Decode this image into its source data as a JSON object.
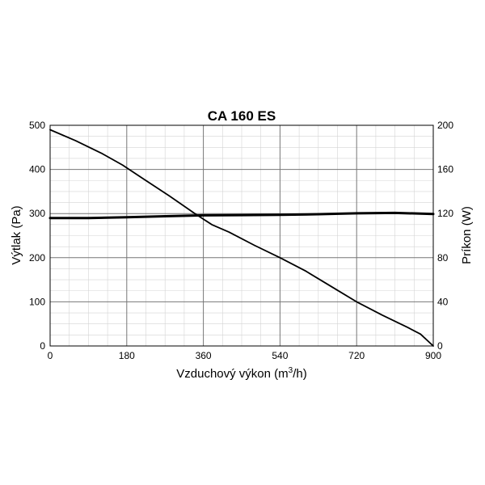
{
  "chart_data": {
    "type": "line",
    "title": "CA 160 ES",
    "xlabel": {
      "prefix": "Vzduchový výkon (m",
      "sup": "3",
      "suffix": "/h)"
    },
    "ylabel": "Výtlak (Pa)",
    "y2label": "Príkon (W)",
    "xlim": [
      0,
      900
    ],
    "ylim": [
      0,
      500
    ],
    "y2lim": [
      0,
      200
    ],
    "x_ticks": [
      "0",
      "180",
      "360",
      "540",
      "720",
      "900"
    ],
    "y_ticks": [
      "0",
      "100",
      "200",
      "300",
      "400",
      "500"
    ],
    "y2_ticks": [
      "0",
      "40",
      "80",
      "120",
      "160",
      "200"
    ],
    "grid": true,
    "series": [
      {
        "axis": "left",
        "color": "#000000",
        "x": [
          0,
          60,
          120,
          170,
          220,
          280,
          340,
          380,
          420,
          480,
          540,
          600,
          660,
          720,
          780,
          840,
          870,
          900
        ],
        "y": [
          490,
          465,
          437,
          410,
          378,
          340,
          300,
          275,
          258,
          228,
          200,
          170,
          135,
          100,
          70,
          42,
          27,
          0
        ]
      },
      {
        "axis": "right",
        "color": "#000000",
        "x": [
          0,
          90,
          180,
          270,
          360,
          450,
          540,
          630,
          720,
          810,
          900
        ],
        "y": [
          116,
          116,
          116.6,
          117.6,
          118.4,
          118.6,
          118.8,
          119.4,
          120.2,
          120.6,
          119.6
        ]
      }
    ]
  }
}
